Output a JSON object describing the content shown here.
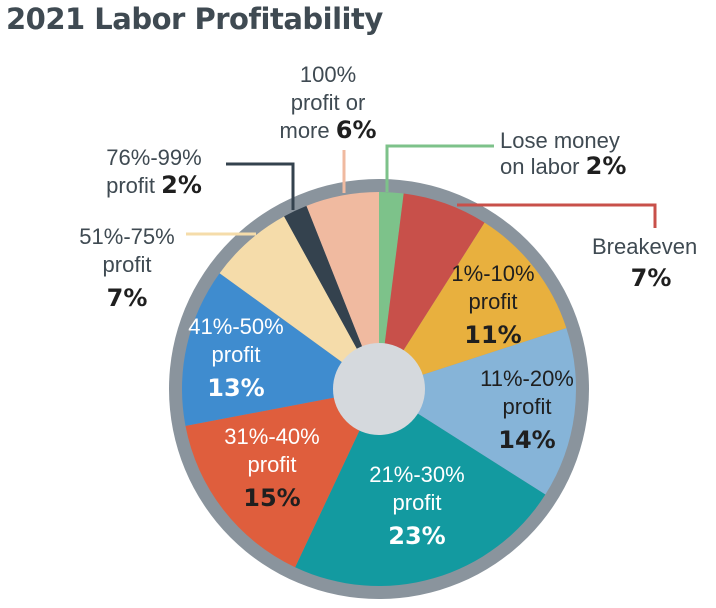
{
  "chart_data": {
    "type": "pie",
    "title": "2021 Labor Profitability",
    "categories": [
      "Lose money on labor",
      "Breakeven",
      "1%-10% profit",
      "11%-20% profit",
      "21%-30% profit",
      "31%-40% profit",
      "41%-50% profit",
      "51%-75% profit",
      "76%-99% profit",
      "100% profit or more"
    ],
    "values": [
      2,
      7,
      11,
      14,
      23,
      15,
      13,
      7,
      2,
      6
    ],
    "value_labels": [
      "2%",
      "7%",
      "11%",
      "14%",
      "23%",
      "15%",
      "13%",
      "7%",
      "2%",
      "6%"
    ],
    "label_lines": [
      [
        "Lose money",
        "on labor"
      ],
      [
        "Breakeven"
      ],
      [
        "1%-10%",
        "profit"
      ],
      [
        "11%-20%",
        "profit"
      ],
      [
        "21%-30%",
        "profit"
      ],
      [
        "31%-40%",
        "profit"
      ],
      [
        "41%-50%",
        "profit"
      ],
      [
        "51%-75%",
        "profit"
      ],
      [
        "76%-99%",
        "profit"
      ],
      [
        "100%",
        "profit or",
        "more"
      ]
    ],
    "colors": [
      "#7dc28a",
      "#c8504a",
      "#e8b03e",
      "#86b4d8",
      "#139aa0",
      "#df5e3d",
      "#3f8ccf",
      "#f5dcaa",
      "#34424e",
      "#f0baa0"
    ],
    "ring_color": "#8a949d",
    "hole_color": "#d5d9dd",
    "legend": "callouts"
  }
}
